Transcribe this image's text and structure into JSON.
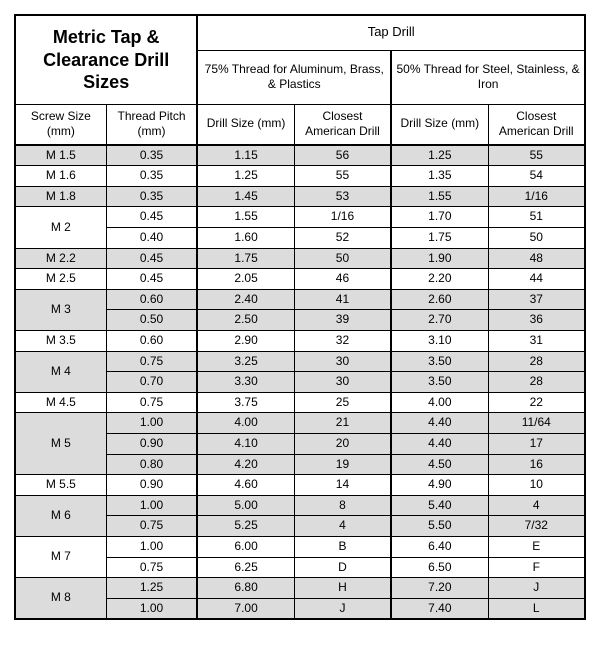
{
  "title": "Metric Tap & Clearance Drill Sizes",
  "headers": {
    "tap_drill": "Tap Drill",
    "range75": "75% Thread for Aluminum, Brass, & Plastics",
    "range50": "50% Thread for Steel, Stainless, & Iron",
    "screw_size": "Screw Size (mm)",
    "thread_pitch": "Thread Pitch (mm)",
    "drill_size": "Drill Size (mm)",
    "closest_am": "Closest American Drill"
  },
  "columns": {
    "widths_pct": [
      16,
      16,
      17,
      17,
      17,
      17
    ]
  },
  "groups": [
    {
      "screw": "M 1.5",
      "shade": true,
      "rows": [
        {
          "pitch": "0.35",
          "d75": "1.15",
          "a75": "56",
          "d50": "1.25",
          "a50": "55"
        }
      ]
    },
    {
      "screw": "M 1.6",
      "shade": false,
      "rows": [
        {
          "pitch": "0.35",
          "d75": "1.25",
          "a75": "55",
          "d50": "1.35",
          "a50": "54"
        }
      ]
    },
    {
      "screw": "M 1.8",
      "shade": true,
      "rows": [
        {
          "pitch": "0.35",
          "d75": "1.45",
          "a75": "53",
          "d50": "1.55",
          "a50": "1/16"
        }
      ]
    },
    {
      "screw": "M 2",
      "shade": false,
      "rows": [
        {
          "pitch": "0.45",
          "d75": "1.55",
          "a75": "1/16",
          "d50": "1.70",
          "a50": "51"
        },
        {
          "pitch": "0.40",
          "d75": "1.60",
          "a75": "52",
          "d50": "1.75",
          "a50": "50"
        }
      ]
    },
    {
      "screw": "M 2.2",
      "shade": true,
      "rows": [
        {
          "pitch": "0.45",
          "d75": "1.75",
          "a75": "50",
          "d50": "1.90",
          "a50": "48"
        }
      ]
    },
    {
      "screw": "M 2.5",
      "shade": false,
      "rows": [
        {
          "pitch": "0.45",
          "d75": "2.05",
          "a75": "46",
          "d50": "2.20",
          "a50": "44"
        }
      ]
    },
    {
      "screw": "M 3",
      "shade": true,
      "rows": [
        {
          "pitch": "0.60",
          "d75": "2.40",
          "a75": "41",
          "d50": "2.60",
          "a50": "37"
        },
        {
          "pitch": "0.50",
          "d75": "2.50",
          "a75": "39",
          "d50": "2.70",
          "a50": "36"
        }
      ]
    },
    {
      "screw": "M 3.5",
      "shade": false,
      "rows": [
        {
          "pitch": "0.60",
          "d75": "2.90",
          "a75": "32",
          "d50": "3.10",
          "a50": "31"
        }
      ]
    },
    {
      "screw": "M 4",
      "shade": true,
      "rows": [
        {
          "pitch": "0.75",
          "d75": "3.25",
          "a75": "30",
          "d50": "3.50",
          "a50": "28"
        },
        {
          "pitch": "0.70",
          "d75": "3.30",
          "a75": "30",
          "d50": "3.50",
          "a50": "28"
        }
      ]
    },
    {
      "screw": "M 4.5",
      "shade": false,
      "rows": [
        {
          "pitch": "0.75",
          "d75": "3.75",
          "a75": "25",
          "d50": "4.00",
          "a50": "22"
        }
      ]
    },
    {
      "screw": "M 5",
      "shade": true,
      "rows": [
        {
          "pitch": "1.00",
          "d75": "4.00",
          "a75": "21",
          "d50": "4.40",
          "a50": "11/64"
        },
        {
          "pitch": "0.90",
          "d75": "4.10",
          "a75": "20",
          "d50": "4.40",
          "a50": "17"
        },
        {
          "pitch": "0.80",
          "d75": "4.20",
          "a75": "19",
          "d50": "4.50",
          "a50": "16"
        }
      ]
    },
    {
      "screw": "M 5.5",
      "shade": false,
      "rows": [
        {
          "pitch": "0.90",
          "d75": "4.60",
          "a75": "14",
          "d50": "4.90",
          "a50": "10"
        }
      ]
    },
    {
      "screw": "M 6",
      "shade": true,
      "rows": [
        {
          "pitch": "1.00",
          "d75": "5.00",
          "a75": "8",
          "d50": "5.40",
          "a50": "4"
        },
        {
          "pitch": "0.75",
          "d75": "5.25",
          "a75": "4",
          "d50": "5.50",
          "a50": "7/32"
        }
      ]
    },
    {
      "screw": "M 7",
      "shade": false,
      "rows": [
        {
          "pitch": "1.00",
          "d75": "6.00",
          "a75": "B",
          "d50": "6.40",
          "a50": "E"
        },
        {
          "pitch": "0.75",
          "d75": "6.25",
          "a75": "D",
          "d50": "6.50",
          "a50": "F"
        }
      ]
    },
    {
      "screw": "M 8",
      "shade": true,
      "rows": [
        {
          "pitch": "1.25",
          "d75": "6.80",
          "a75": "H",
          "d50": "7.20",
          "a50": "J"
        },
        {
          "pitch": "1.00",
          "d75": "7.00",
          "a75": "J",
          "d50": "7.40",
          "a50": "L"
        }
      ]
    }
  ],
  "colors": {
    "shade": "#dcdcdc",
    "border": "#000000",
    "background": "#ffffff"
  },
  "font": {
    "family": "Verdana",
    "data_size_pt": 9,
    "title_size_pt": 14
  }
}
